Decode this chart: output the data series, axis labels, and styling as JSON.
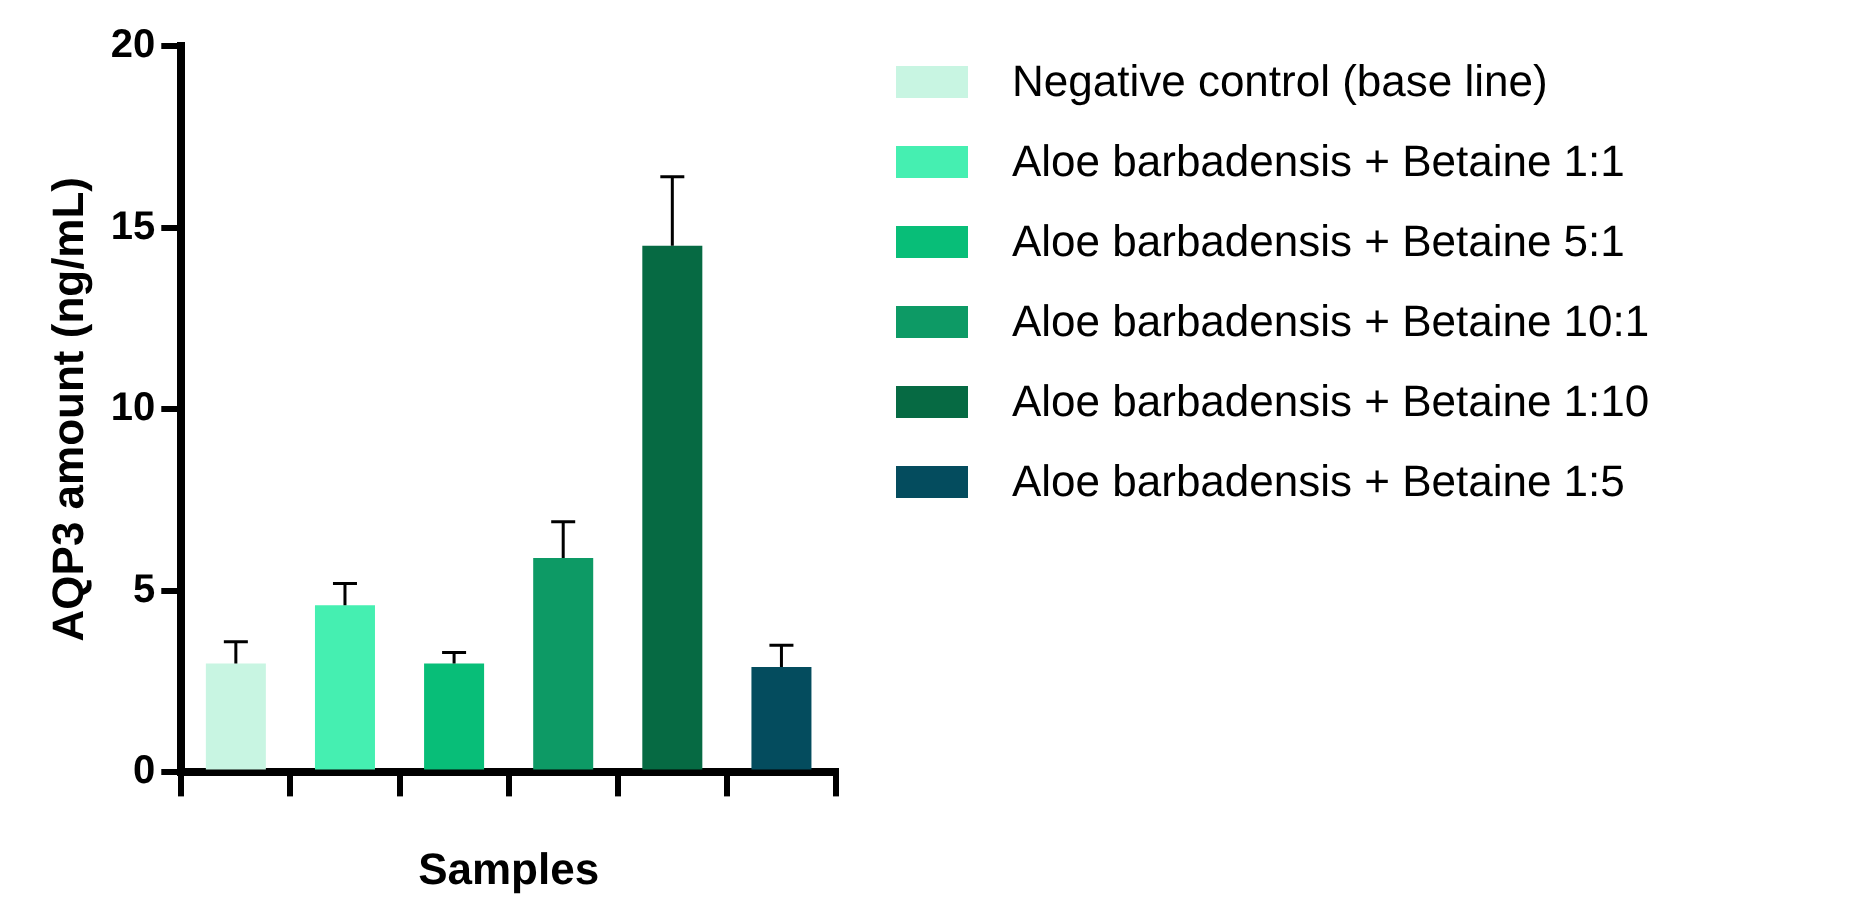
{
  "chart_data": {
    "type": "bar",
    "xlabel": "Samples",
    "ylabel": "AQP3 amount (ng/mL)",
    "categories": [
      null,
      null,
      null,
      null,
      null,
      null
    ],
    "series": [
      {
        "name": "Negative control (base line)",
        "color": "#c8f5e2",
        "values": [
          3.0,
          null,
          null,
          null,
          null,
          null
        ],
        "errors": [
          [
            3.0,
            3.6
          ],
          null,
          null,
          null,
          null,
          null
        ]
      },
      {
        "name": "Aloe barbadensis + Betaine 1:1",
        "color": "#45efb1",
        "values": [
          null,
          4.6,
          null,
          null,
          null,
          null
        ],
        "errors": [
          null,
          [
            4.6,
            5.2
          ],
          null,
          null,
          null,
          null
        ]
      },
      {
        "name": "Aloe barbadensis + Betaine 5:1",
        "color": "#08be78",
        "values": [
          null,
          null,
          3.0,
          null,
          null,
          null
        ],
        "errors": [
          null,
          null,
          [
            3.0,
            3.3
          ],
          null,
          null,
          null
        ]
      },
      {
        "name": "Aloe barbadensis + Betaine 10:1",
        "color": "#0d9a65",
        "values": [
          null,
          null,
          null,
          5.9,
          null,
          null
        ],
        "errors": [
          null,
          null,
          null,
          [
            5.9,
            6.9
          ],
          null,
          null
        ]
      },
      {
        "name": "Aloe barbadensis + Betaine 1:10",
        "color": "#066a43",
        "values": [
          null,
          null,
          null,
          null,
          14.5,
          null
        ],
        "errors": [
          null,
          null,
          null,
          null,
          [
            14.5,
            16.4
          ],
          null
        ]
      },
      {
        "name": "Aloe barbadensis + Betaine 1:5",
        "color": "#044c5e",
        "values": [
          null,
          null,
          null,
          null,
          null,
          2.9
        ],
        "errors": [
          null,
          null,
          null,
          null,
          null,
          [
            2.9,
            3.5
          ]
        ]
      }
    ],
    "ylim": [
      0,
      20
    ],
    "yticks": [
      0,
      5,
      10,
      15,
      20
    ],
    "grid": false,
    "legend": "right"
  }
}
